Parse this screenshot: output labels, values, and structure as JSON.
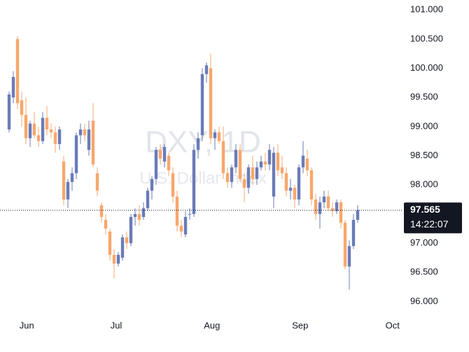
{
  "chart_data": {
    "type": "candlestick",
    "watermark_title": "DXY, 1D",
    "watermark_subtitle": "U.S. Dollar Index",
    "x": [
      0,
      1,
      2,
      3,
      4,
      5,
      6,
      7,
      8,
      9,
      10,
      11,
      12,
      13,
      14,
      15,
      16,
      17,
      18,
      19,
      20,
      21,
      22,
      23,
      24,
      25,
      26,
      27,
      28,
      29,
      30,
      31,
      32,
      33,
      34,
      35,
      36,
      37,
      38,
      39,
      40,
      41,
      42,
      43,
      44,
      45,
      46,
      47,
      48,
      49,
      50,
      51,
      52,
      53,
      54,
      55,
      56,
      57,
      58,
      59,
      60,
      61,
      62,
      63,
      64,
      65,
      66,
      67,
      68,
      69,
      70,
      71,
      72,
      73,
      74,
      75,
      76,
      77,
      78,
      79,
      80,
      81,
      82,
      83
    ],
    "open": [
      98.95,
      99.5,
      100.5,
      99.45,
      99.2,
      98.8,
      99.05,
      98.85,
      98.75,
      99.15,
      98.95,
      98.9,
      98.7,
      98.4,
      97.75,
      98.05,
      98.2,
      98.85,
      98.95,
      98.6,
      99.1,
      98.2,
      97.65,
      97.4,
      97.2,
      96.8,
      96.65,
      96.75,
      97.1,
      97.0,
      97.45,
      97.5,
      97.45,
      97.6,
      97.9,
      98.1,
      98.6,
      98.4,
      98.5,
      98.2,
      97.8,
      97.3,
      97.15,
      97.5,
      97.5,
      98.6,
      98.85,
      99.9,
      100.0,
      98.8,
      98.9,
      98.75,
      98.2,
      98.05,
      98.3,
      98.6,
      98.1,
      97.95,
      98.3,
      98.1,
      98.3,
      98.4,
      98.35,
      97.8,
      98.55,
      98.3,
      98.2,
      97.9,
      97.95,
      97.75,
      98.3,
      98.45,
      98.25,
      97.75,
      97.5,
      97.7,
      97.8,
      97.6,
      97.55,
      97.7,
      97.35,
      96.6,
      96.95,
      97.4
    ],
    "high": [
      99.6,
      99.95,
      100.55,
      99.6,
      99.5,
      99.1,
      99.25,
      99.0,
      99.25,
      99.35,
      99.05,
      99.0,
      99.0,
      98.5,
      98.1,
      98.3,
      98.9,
      99.05,
      99.05,
      99.1,
      99.4,
      98.3,
      97.7,
      97.5,
      97.25,
      96.9,
      96.85,
      97.15,
      97.2,
      97.5,
      97.6,
      97.65,
      97.7,
      97.95,
      98.15,
      98.65,
      98.7,
      98.7,
      98.55,
      98.3,
      97.9,
      97.4,
      97.55,
      97.6,
      98.7,
      98.9,
      100.0,
      100.1,
      100.25,
      98.95,
      99.0,
      99.0,
      98.3,
      98.35,
      98.7,
      98.7,
      98.2,
      98.35,
      98.5,
      98.4,
      98.5,
      98.55,
      98.7,
      98.65,
      98.7,
      98.5,
      98.3,
      98.1,
      98.0,
      98.35,
      98.75,
      98.6,
      98.3,
      97.85,
      97.8,
      97.9,
      97.9,
      97.7,
      97.75,
      97.75,
      97.4,
      97.05,
      97.5,
      97.65
    ],
    "low": [
      98.9,
      99.4,
      99.3,
      99.0,
      98.7,
      98.65,
      98.8,
      98.65,
      98.7,
      98.85,
      98.8,
      98.55,
      98.6,
      97.65,
      97.6,
      97.9,
      98.1,
      98.7,
      98.75,
      98.5,
      98.3,
      97.8,
      97.35,
      97.15,
      96.7,
      96.4,
      96.6,
      96.7,
      96.9,
      96.95,
      97.3,
      97.3,
      97.4,
      97.55,
      97.75,
      98.0,
      98.35,
      98.3,
      98.15,
      97.7,
      97.2,
      97.1,
      97.1,
      97.4,
      97.45,
      98.45,
      98.75,
      99.75,
      98.7,
      98.6,
      98.7,
      98.1,
      97.95,
      97.95,
      98.2,
      98.05,
      97.7,
      97.85,
      98.0,
      98.0,
      98.25,
      98.25,
      98.25,
      97.6,
      98.15,
      98.1,
      97.8,
      97.75,
      97.6,
      97.65,
      98.2,
      98.15,
      97.65,
      97.4,
      97.25,
      97.6,
      97.55,
      97.45,
      97.5,
      97.25,
      96.55,
      96.2,
      96.9,
      97.35
    ],
    "close": [
      99.55,
      99.85,
      99.4,
      99.2,
      98.8,
      99.05,
      98.85,
      98.75,
      99.15,
      98.95,
      98.9,
      98.7,
      98.95,
      97.75,
      98.05,
      98.2,
      98.85,
      98.95,
      98.85,
      98.95,
      98.35,
      97.9,
      97.45,
      97.25,
      96.8,
      96.65,
      96.8,
      97.1,
      97.0,
      97.45,
      97.5,
      97.4,
      97.6,
      97.9,
      98.1,
      98.6,
      98.45,
      98.65,
      98.25,
      97.8,
      97.3,
      97.2,
      97.45,
      97.5,
      98.6,
      98.8,
      99.9,
      100.05,
      98.8,
      98.9,
      98.75,
      98.2,
      98.05,
      98.3,
      98.6,
      98.1,
      97.95,
      98.3,
      98.1,
      98.3,
      98.4,
      98.35,
      98.6,
      98.55,
      98.25,
      98.2,
      97.9,
      97.95,
      97.75,
      98.3,
      98.5,
      98.25,
      97.75,
      97.5,
      97.7,
      97.8,
      97.6,
      97.55,
      97.7,
      97.35,
      96.6,
      96.95,
      97.4,
      97.565
    ],
    "up_color": "#6a7bb8",
    "down_color": "#f7a76c",
    "xlim": [
      -2.17,
      93.67
    ],
    "xticks": [
      {
        "value": 4.2,
        "label": "Jun"
      },
      {
        "value": 25.5,
        "label": "Jul"
      },
      {
        "value": 48.3,
        "label": "Aug"
      },
      {
        "value": 69.3,
        "label": "Sep"
      },
      {
        "value": 91.3,
        "label": "Oct"
      }
    ],
    "ylim": [
      95.77,
      101.17
    ],
    "yticks": [
      {
        "value": 96,
        "label": "96.000"
      },
      {
        "value": 96.5,
        "label": "96.500"
      },
      {
        "value": 97,
        "label": "97.000"
      },
      {
        "value": 97.5,
        "label": "97.500"
      },
      {
        "value": 98,
        "label": "98.000"
      },
      {
        "value": 98.5,
        "label": "98.500"
      },
      {
        "value": 99,
        "label": "99.000"
      },
      {
        "value": 99.5,
        "label": "99.500"
      },
      {
        "value": 100,
        "label": "100.000"
      },
      {
        "value": 100.5,
        "label": "100.500"
      },
      {
        "value": 101,
        "label": "101.000"
      }
    ],
    "last_price": {
      "value": 97.565,
      "label": "97.565"
    },
    "countdown": "14:22:07"
  }
}
